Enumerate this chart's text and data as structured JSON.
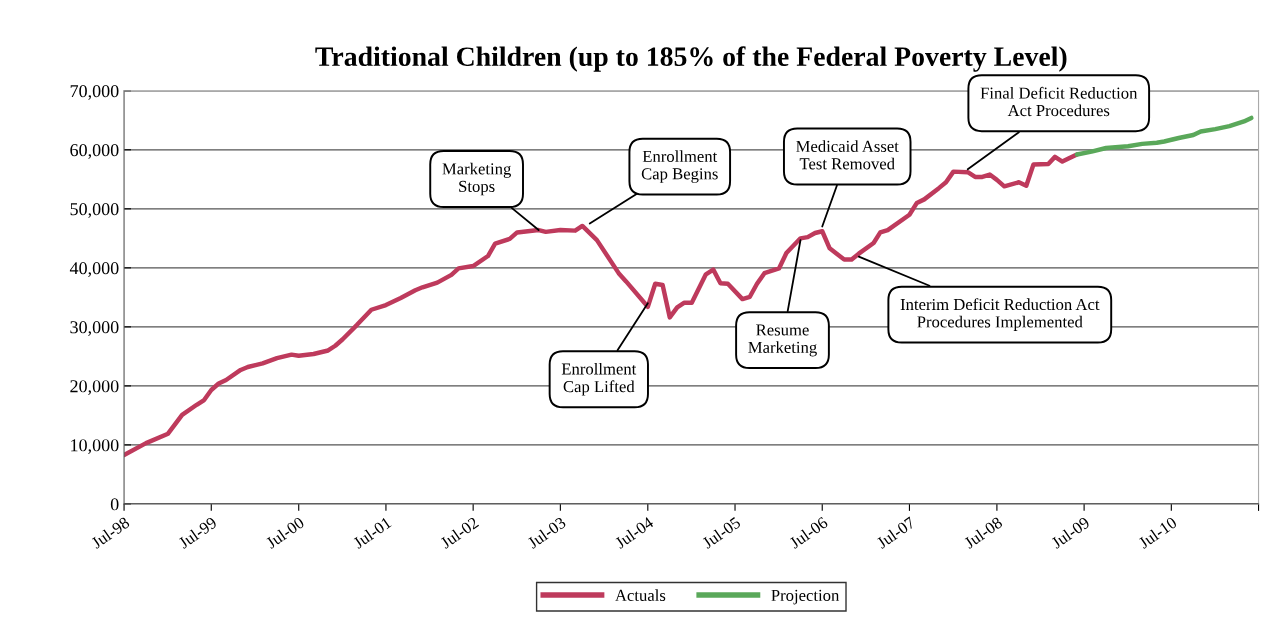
{
  "chart_data": {
    "type": "line",
    "title": "Traditional Children (up to 185% of the Federal Poverty Level)",
    "series": [
      {
        "name": "Actuals",
        "color": "#be3a5c",
        "x": [
          "1998-07",
          "1998-10",
          "1999-01",
          "1999-03",
          "1999-05",
          "1999-06",
          "1999-07",
          "1999-08",
          "1999-09",
          "1999-11",
          "1999-12",
          "2000-02",
          "2000-04",
          "2000-06",
          "2000-07",
          "2000-09",
          "2000-11",
          "2000-12",
          "2001-01",
          "2001-03",
          "2001-05",
          "2001-07",
          "2001-09",
          "2001-11",
          "2001-12",
          "2002-02",
          "2002-04",
          "2002-05",
          "2002-07",
          "2002-09",
          "2002-10",
          "2002-12",
          "2003-01",
          "2003-04",
          "2003-05",
          "2003-07",
          "2003-09",
          "2003-10",
          "2003-12",
          "2004-03",
          "2004-04",
          "2004-07",
          "2004-08",
          "2004-09",
          "2004-10",
          "2004-11",
          "2004-12",
          "2005-01",
          "2005-03",
          "2005-04",
          "2005-05",
          "2005-06",
          "2005-08",
          "2005-09",
          "2005-10",
          "2005-11",
          "2006-01",
          "2006-02",
          "2006-04",
          "2006-05",
          "2006-06",
          "2006-07",
          "2006-08",
          "2006-10",
          "2006-11",
          "2006-12",
          "2007-02",
          "2007-03",
          "2007-04",
          "2007-07",
          "2007-08",
          "2007-09",
          "2007-11",
          "2007-12",
          "2008-01",
          "2008-03",
          "2008-04",
          "2008-05",
          "2008-06",
          "2008-07",
          "2008-08",
          "2008-10",
          "2008-11",
          "2008-12",
          "2009-02",
          "2009-03",
          "2009-04",
          "2009-05",
          "2009-06"
        ],
        "values": [
          8300,
          10300,
          11900,
          15100,
          16800,
          17600,
          19300,
          20400,
          21000,
          22700,
          23200,
          23800,
          24700,
          25300,
          25100,
          25400,
          26000,
          26800,
          27900,
          30300,
          32900,
          33700,
          34900,
          36200,
          36700,
          37500,
          38800,
          39900,
          40300,
          42000,
          44100,
          44900,
          46000,
          46400,
          46100,
          46400,
          46300,
          47100,
          44700,
          39100,
          37700,
          33400,
          37300,
          37100,
          31600,
          33300,
          34100,
          34100,
          38900,
          39700,
          37400,
          37300,
          34700,
          35100,
          37300,
          39100,
          39900,
          42500,
          45000,
          45200,
          45900,
          46200,
          43300,
          41400,
          41400,
          42400,
          44200,
          46000,
          46400,
          49000,
          51000,
          51600,
          53500,
          54500,
          56300,
          56200,
          55400,
          55400,
          55800,
          54900,
          53800,
          54500,
          53900,
          57500,
          57600,
          58800,
          58000,
          58600,
          59200
        ]
      },
      {
        "name": "Projection",
        "color": "#5aa85a",
        "x": [
          "2009-06",
          "2009-08",
          "2009-10",
          "2010-01",
          "2010-03",
          "2010-05",
          "2010-06",
          "2010-08",
          "2010-10",
          "2010-11",
          "2011-01",
          "2011-03",
          "2011-05",
          "2011-06"
        ],
        "values": [
          59200,
          59700,
          60300,
          60600,
          61000,
          61200,
          61400,
          62000,
          62500,
          63100,
          63500,
          64000,
          64800,
          65400
        ]
      }
    ],
    "xlim": [
      "1998-07",
      "2011-07"
    ],
    "xticks": [
      {
        "value": "1998-07",
        "label": "Jul-98"
      },
      {
        "value": "1999-07",
        "label": "Jul-99"
      },
      {
        "value": "2000-07",
        "label": "Jul-00"
      },
      {
        "value": "2001-07",
        "label": "Jul-01"
      },
      {
        "value": "2002-07",
        "label": "Jul-02"
      },
      {
        "value": "2003-07",
        "label": "Jul-03"
      },
      {
        "value": "2004-07",
        "label": "Jul-04"
      },
      {
        "value": "2005-07",
        "label": "Jul-05"
      },
      {
        "value": "2006-07",
        "label": "Jul-06"
      },
      {
        "value": "2007-07",
        "label": "Jul-07"
      },
      {
        "value": "2008-07",
        "label": "Jul-08"
      },
      {
        "value": "2009-07",
        "label": "Jul-09"
      },
      {
        "value": "2010-07",
        "label": "Jul-10"
      },
      {
        "value": "2011-07",
        "label": null
      }
    ],
    "ylim": [
      0,
      70000
    ],
    "yticks": [
      0,
      {
        "value": 10000,
        "label": "10,000"
      },
      {
        "value": 20000,
        "label": "20,000"
      },
      {
        "value": 30000,
        "label": "30,000"
      },
      {
        "value": 40000,
        "label": "40,000"
      },
      {
        "value": 50000,
        "label": "50,000"
      },
      {
        "value": 60000,
        "label": "60,000"
      },
      {
        "value": 70000,
        "label": "70,000"
      }
    ],
    "grid": "y",
    "legend": "bottom",
    "marker": "none",
    "line_style": "solid",
    "annotations": [
      {
        "text": "Marketing\nStops",
        "x": "2003-04",
        "y": 46400
      },
      {
        "text": "Enrollment\nCap Begins",
        "x": "2003-11",
        "y": 47500
      },
      {
        "text": "Enrollment\nCap Lifted",
        "x": "2004-07",
        "y": 34000
      },
      {
        "text": "Resume\nMarketing",
        "x": "2006-04",
        "y": 44700
      },
      {
        "text": "Medicaid Asset\nTest Removed",
        "x": "2006-07",
        "y": 47000
      },
      {
        "text": "Interim Deficit Reduction Act\nProcedures Implemented",
        "x": "2006-12",
        "y": 41900
      },
      {
        "text": "Final Deficit Reduction\nAct Procedures",
        "x": "2008-03",
        "y": 56700
      }
    ]
  }
}
